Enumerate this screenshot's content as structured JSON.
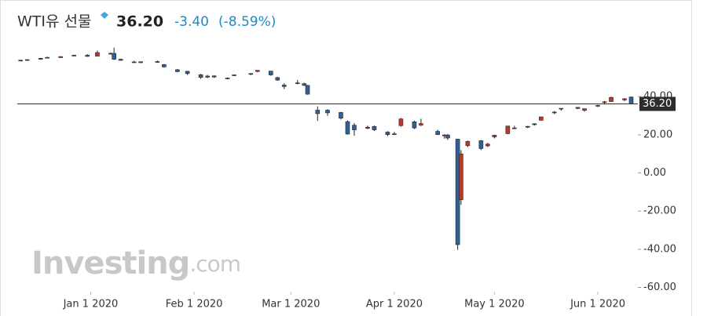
{
  "chart_data": {
    "type": "candlestick",
    "title": "WTI유 선물",
    "last_price": {
      "value": 36.2,
      "label": "36.20"
    },
    "change": {
      "value": -3.4,
      "label": "-3.40"
    },
    "change_percent": {
      "value": -8.59,
      "label": "(-8.59%)"
    },
    "watermark_main": "Investing",
    "watermark_suffix": ".com",
    "up_color": "#b8392f",
    "down_color": "#2f6296",
    "x": [
      "2019-12-11",
      "2019-12-13",
      "2019-12-17",
      "2019-12-19",
      "2019-12-23",
      "2019-12-27",
      "2019-12-31",
      "2020-01-03",
      "2020-01-07",
      "2020-01-08",
      "2020-01-10",
      "2020-01-14",
      "2020-01-16",
      "2020-01-21",
      "2020-01-23",
      "2020-01-27",
      "2020-01-30",
      "2020-02-03",
      "2020-02-05",
      "2020-02-07",
      "2020-02-11",
      "2020-02-13",
      "2020-02-18",
      "2020-02-20",
      "2020-02-24",
      "2020-02-26",
      "2020-02-28",
      "2020-03-03",
      "2020-03-05",
      "2020-03-06",
      "2020-03-09",
      "2020-03-12",
      "2020-03-16",
      "2020-03-18",
      "2020-03-20",
      "2020-03-24",
      "2020-03-26",
      "2020-03-30",
      "2020-04-01",
      "2020-04-03",
      "2020-04-07",
      "2020-04-09",
      "2020-04-14",
      "2020-04-16",
      "2020-04-17",
      "2020-04-20",
      "2020-04-21",
      "2020-04-23",
      "2020-04-27",
      "2020-04-29",
      "2020-05-01",
      "2020-05-05",
      "2020-05-07",
      "2020-05-11",
      "2020-05-13",
      "2020-05-15",
      "2020-05-19",
      "2020-05-21",
      "2020-05-26",
      "2020-05-28",
      "2020-06-01",
      "2020-06-03",
      "2020-06-05",
      "2020-06-09",
      "2020-06-11"
    ],
    "open": [
      58.8,
      59.1,
      59.6,
      60.3,
      60.5,
      61.6,
      61.7,
      61.2,
      62.7,
      62.7,
      59.6,
      58.1,
      57.8,
      58.4,
      56.8,
      54.1,
      53.3,
      51.5,
      50.2,
      50.9,
      49.7,
      51.2,
      52.1,
      53.2,
      53.4,
      50.0,
      46.1,
      47.2,
      46.8,
      45.9,
      32.9,
      32.9,
      31.7,
      26.9,
      25.0,
      23.4,
      24.4,
      21.4,
      20.5,
      24.8,
      26.8,
      25.1,
      21.8,
      19.9,
      19.9,
      17.7,
      -14.0,
      14.3,
      16.9,
      14.2,
      18.9,
      20.6,
      23.5,
      24.4,
      25.8,
      27.6,
      31.8,
      33.7,
      33.8,
      32.8,
      35.2,
      36.9,
      37.4,
      38.3,
      39.8
    ],
    "high": [
      59.3,
      59.6,
      60.3,
      60.9,
      61.2,
      62.0,
      62.3,
      64.1,
      63.2,
      65.7,
      59.9,
      58.8,
      58.5,
      58.9,
      57.1,
      54.5,
      53.5,
      51.9,
      51.4,
      51.1,
      50.1,
      51.6,
      52.3,
      53.9,
      53.5,
      50.4,
      47.0,
      48.7,
      47.3,
      46.1,
      34.9,
      33.4,
      32.0,
      27.5,
      26.1,
      24.8,
      24.8,
      21.9,
      21.5,
      28.8,
      27.4,
      28.4,
      22.7,
      20.3,
      20.4,
      17.9,
      12.0,
      17.0,
      17.2,
      15.8,
      20.0,
      24.6,
      24.7,
      24.7,
      26.0,
      29.5,
      32.5,
      34.0,
      34.5,
      33.7,
      35.8,
      37.7,
      40.0,
      39.2,
      40.0
    ],
    "low": [
      58.5,
      58.9,
      59.4,
      60.1,
      60.3,
      61.2,
      60.9,
      61.1,
      62.1,
      59.2,
      58.9,
      57.9,
      57.6,
      57.8,
      55.2,
      52.9,
      51.3,
      49.3,
      49.8,
      49.8,
      49.1,
      50.8,
      51.3,
      52.8,
      51.0,
      48.3,
      44.0,
      46.5,
      45.6,
      41.0,
      27.3,
      30.0,
      28.0,
      20.1,
      19.5,
      22.9,
      22.0,
      19.3,
      19.9,
      24.3,
      23.0,
      24.5,
      19.9,
      18.0,
      17.3,
      -40.3,
      -16.7,
      13.5,
      12.0,
      13.6,
      18.1,
      20.3,
      23.0,
      23.5,
      24.8,
      27.5,
      30.8,
      32.6,
      33.5,
      32.1,
      34.5,
      36.4,
      37.3,
      37.6,
      35.9
    ],
    "close": [
      59.1,
      59.4,
      60.1,
      60.6,
      61.0,
      61.7,
      61.1,
      63.1,
      62.7,
      59.6,
      59.0,
      58.2,
      58.3,
      58.3,
      55.6,
      53.1,
      52.1,
      50.1,
      50.8,
      50.3,
      49.6,
      51.4,
      51.9,
      53.8,
      51.4,
      48.7,
      45.3,
      47.2,
      45.9,
      41.3,
      31.1,
      31.5,
      28.7,
      20.4,
      22.6,
      24.0,
      22.6,
      20.1,
      20.3,
      28.3,
      23.6,
      25.9,
      20.1,
      19.9,
      18.3,
      -37.6,
      10.0,
      16.5,
      12.8,
      15.1,
      19.8,
      24.6,
      23.6,
      24.1,
      25.3,
      29.4,
      31.9,
      33.9,
      34.4,
      33.7,
      35.4,
      37.3,
      39.6,
      38.9,
      36.2
    ],
    "xlim": [
      "2019-12-10",
      "2020-06-13"
    ],
    "xticks": [
      {
        "value": "2020-01-01",
        "label": "Jan 1 2020"
      },
      {
        "value": "2020-02-01",
        "label": "Feb 1 2020"
      },
      {
        "value": "2020-03-01",
        "label": "Mar 1 2020"
      },
      {
        "value": "2020-04-01",
        "label": "Apr 1 2020"
      },
      {
        "value": "2020-05-01",
        "label": "May 1 2020"
      },
      {
        "value": "2020-06-01",
        "label": "Jun 1 2020"
      }
    ],
    "ylim": [
      -75,
      66
    ],
    "yticks": [
      {
        "value": 40,
        "label": "40.00"
      },
      {
        "value": 20,
        "label": "20.00"
      },
      {
        "value": 0,
        "label": "0.00"
      },
      {
        "value": -20,
        "label": "-20.00"
      },
      {
        "value": -40,
        "label": "-40.00"
      },
      {
        "value": -60,
        "label": "-60.00"
      }
    ]
  }
}
